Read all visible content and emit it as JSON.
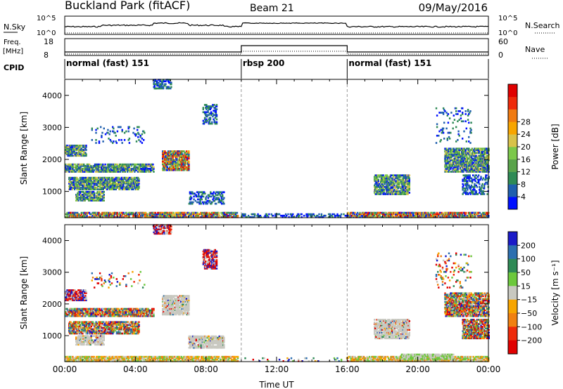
{
  "header": {
    "title": "Buckland Park (fitACF)",
    "beam": "Beam 21",
    "date": "09/May/2016"
  },
  "top_panels": {
    "nsky_label": "N.Sky",
    "nsky_ticks": [
      "10^5",
      "10^0"
    ],
    "nsearch_label": "N.Search",
    "freq_label_lines": [
      "Freq.",
      "[MHz]"
    ],
    "freq_ticks": [
      "18",
      "8"
    ],
    "nave_label": "Nave",
    "nave_ticks": [
      "60",
      "0"
    ],
    "cpid_label": "CPID",
    "cpid_segments": [
      {
        "label": "normal (fast) 151",
        "start_h": 0,
        "end_h": 10
      },
      {
        "label": "rbsp 200",
        "start_h": 10,
        "end_h": 16
      },
      {
        "label": "normal (fast) 151",
        "start_h": 16,
        "end_h": 24
      }
    ],
    "freq_profile": [
      {
        "start_h": 0,
        "end_h": 10,
        "level": "low"
      },
      {
        "start_h": 10,
        "end_h": 16,
        "level": "high"
      },
      {
        "start_h": 16,
        "end_h": 24,
        "level": "low"
      }
    ]
  },
  "chart_data": [
    {
      "type": "heatmap",
      "name": "power",
      "xlabel": "",
      "ylabel": "Slant Range [km]",
      "xlim": [
        0,
        24
      ],
      "ylim": [
        180,
        4500
      ],
      "x_ticks": [
        "00:00",
        "04:00",
        "08:00",
        "12:00",
        "16:00",
        "20:00",
        "00:00"
      ],
      "y_ticks": [
        1000,
        2000,
        3000,
        4000
      ],
      "colorbar": {
        "label": "Power [dB]",
        "ticks": [
          "4",
          "8",
          "12",
          "16",
          "20",
          "24",
          "28"
        ],
        "colors": [
          "#0010ff",
          "#1f5fae",
          "#2e8a55",
          "#59a34a",
          "#7cc84a",
          "#d8c24a",
          "#f7a500",
          "#f07a10",
          "#ee2a0a",
          "#e00000"
        ]
      },
      "regions": [
        {
          "t": [
            0.0,
            9.8
          ],
          "r": [
            180,
            330
          ],
          "level": "high"
        },
        {
          "t": [
            16.0,
            24.0
          ],
          "r": [
            180,
            330
          ],
          "level": "high"
        },
        {
          "t": [
            10.0,
            16.0
          ],
          "r": [
            180,
            280
          ],
          "level": "low"
        },
        {
          "t": [
            0.0,
            5.0
          ],
          "r": [
            1600,
            1850
          ],
          "level": "mid"
        },
        {
          "t": [
            0.2,
            4.2
          ],
          "r": [
            1050,
            1450
          ],
          "level": "mid"
        },
        {
          "t": [
            0.6,
            2.2
          ],
          "r": [
            700,
            1000
          ],
          "level": "mid"
        },
        {
          "t": [
            0.0,
            1.2
          ],
          "r": [
            2100,
            2450
          ],
          "level": "mid"
        },
        {
          "t": [
            5.5,
            7.0
          ],
          "r": [
            1650,
            2250
          ],
          "level": "high"
        },
        {
          "t": [
            7.0,
            9.0
          ],
          "r": [
            600,
            1000
          ],
          "level": "low"
        },
        {
          "t": [
            7.8,
            8.6
          ],
          "r": [
            3100,
            3700
          ],
          "level": "low"
        },
        {
          "t": [
            5.0,
            6.0
          ],
          "r": [
            4200,
            4500
          ],
          "level": "low"
        },
        {
          "t": [
            1.5,
            4.5
          ],
          "r": [
            2500,
            3000
          ],
          "level": "sparse"
        },
        {
          "t": [
            17.5,
            19.5
          ],
          "r": [
            900,
            1500
          ],
          "level": "mid"
        },
        {
          "t": [
            21.5,
            24.0
          ],
          "r": [
            1600,
            2350
          ],
          "level": "mid"
        },
        {
          "t": [
            22.5,
            24.0
          ],
          "r": [
            900,
            1500
          ],
          "level": "low"
        },
        {
          "t": [
            21.0,
            23.0
          ],
          "r": [
            2500,
            3600
          ],
          "level": "sparse"
        }
      ]
    },
    {
      "type": "heatmap",
      "name": "velocity",
      "xlabel": "Time UT",
      "ylabel": "Slant Range [km]",
      "xlim": [
        0,
        24
      ],
      "ylim": [
        180,
        4500
      ],
      "x_ticks": [
        "00:00",
        "04:00",
        "08:00",
        "12:00",
        "16:00",
        "20:00",
        "00:00"
      ],
      "y_ticks": [
        1000,
        2000,
        3000,
        4000
      ],
      "colorbar": {
        "label": "Velocity [m s⁻¹]",
        "ticks": [
          "200",
          "100",
          "50",
          "15",
          "−15",
          "−50",
          "−100",
          "−200"
        ],
        "colors": [
          "#1a1ac8",
          "#2c6fb0",
          "#2e8a55",
          "#6cc83c",
          "#c8c8c0",
          "#f7a500",
          "#f08010",
          "#ee2a0a",
          "#e00000"
        ]
      },
      "regions": [
        {
          "t": [
            0.0,
            9.8
          ],
          "r": [
            180,
            330
          ],
          "level": "orange"
        },
        {
          "t": [
            16.0,
            24.0
          ],
          "r": [
            180,
            330
          ],
          "level": "orange"
        },
        {
          "t": [
            19.0,
            22.0
          ],
          "r": [
            250,
            400
          ],
          "level": "green"
        },
        {
          "t": [
            10.0,
            16.0
          ],
          "r": [
            180,
            280
          ],
          "level": "sparse"
        },
        {
          "t": [
            0.0,
            5.0
          ],
          "r": [
            1600,
            1850
          ],
          "level": "mixed"
        },
        {
          "t": [
            0.2,
            4.2
          ],
          "r": [
            1050,
            1450
          ],
          "level": "mixed"
        },
        {
          "t": [
            0.6,
            2.2
          ],
          "r": [
            700,
            1000
          ],
          "level": "gray"
        },
        {
          "t": [
            0.0,
            1.2
          ],
          "r": [
            2100,
            2450
          ],
          "level": "red"
        },
        {
          "t": [
            5.5,
            7.0
          ],
          "r": [
            1650,
            2250
          ],
          "level": "gray"
        },
        {
          "t": [
            7.0,
            9.0
          ],
          "r": [
            600,
            1000
          ],
          "level": "gray"
        },
        {
          "t": [
            7.8,
            8.6
          ],
          "r": [
            3100,
            3700
          ],
          "level": "red"
        },
        {
          "t": [
            5.0,
            6.0
          ],
          "r": [
            4200,
            4500
          ],
          "level": "red"
        },
        {
          "t": [
            1.5,
            4.5
          ],
          "r": [
            2500,
            3000
          ],
          "level": "sparse"
        },
        {
          "t": [
            17.5,
            19.5
          ],
          "r": [
            900,
            1500
          ],
          "level": "gray"
        },
        {
          "t": [
            21.5,
            24.0
          ],
          "r": [
            1600,
            2350
          ],
          "level": "mixed"
        },
        {
          "t": [
            22.5,
            24.0
          ],
          "r": [
            900,
            1500
          ],
          "level": "mixed"
        },
        {
          "t": [
            21.0,
            23.0
          ],
          "r": [
            2500,
            3600
          ],
          "level": "sparse"
        }
      ]
    }
  ]
}
